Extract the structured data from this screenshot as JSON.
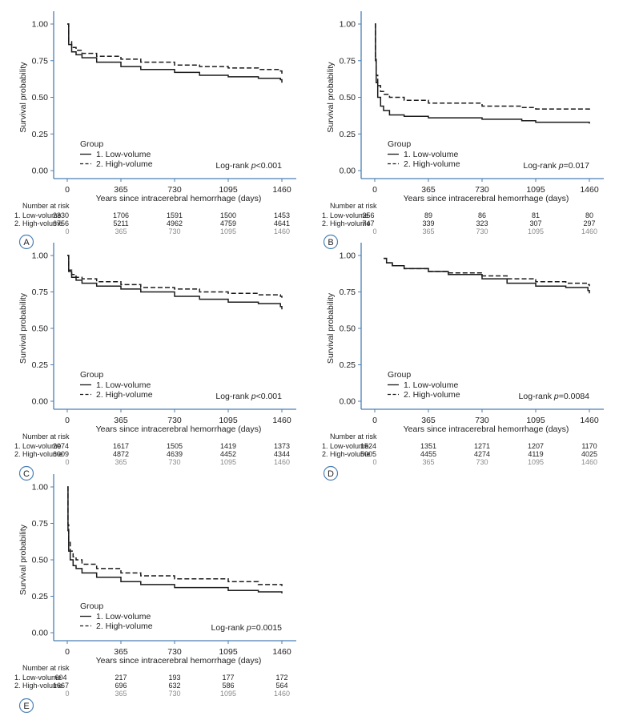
{
  "colors": {
    "axis": "#4a7fb5",
    "line": "#1a1a1a",
    "text": "#222222",
    "muted": "#8a8a8a",
    "badge": "#4a7fb5"
  },
  "chart_data": [
    {
      "panel": "A",
      "type": "line",
      "xlabel": "Years since intracerebral hemorrhage (days)",
      "ylabel": "Survival probability",
      "xlim": [
        0,
        1460
      ],
      "ylim": [
        0,
        1
      ],
      "xticks": [
        "0",
        "365",
        "730",
        "1095",
        "1460"
      ],
      "yticks": [
        "0.00",
        "0.25",
        "0.50",
        "0.75",
        "1.00"
      ],
      "legend_title": "Group",
      "series": [
        {
          "name": "1. Low-volume",
          "style": "solid",
          "x": [
            0,
            10,
            30,
            60,
            100,
            200,
            365,
            500,
            730,
            900,
            1095,
            1300,
            1450,
            1460
          ],
          "y": [
            1.0,
            0.86,
            0.81,
            0.79,
            0.77,
            0.74,
            0.71,
            0.69,
            0.67,
            0.65,
            0.64,
            0.63,
            0.62,
            0.6
          ]
        },
        {
          "name": "2. High-volume",
          "style": "dashed",
          "x": [
            0,
            10,
            30,
            60,
            100,
            200,
            365,
            500,
            730,
            900,
            1095,
            1300,
            1450,
            1460
          ],
          "y": [
            1.0,
            0.88,
            0.84,
            0.82,
            0.8,
            0.78,
            0.76,
            0.74,
            0.72,
            0.71,
            0.7,
            0.69,
            0.68,
            0.66
          ]
        }
      ],
      "pvalue_prefix": "Log-rank ",
      "pvalue_p": "p",
      "pvalue_suffix": "<0.001",
      "risk_title": "Number at risk",
      "risk_rows": [
        {
          "label": "1. Low-volume",
          "values": [
            "2330",
            "1706",
            "1591",
            "1500",
            "1453"
          ]
        },
        {
          "label": "2. High-volume",
          "values": [
            "6756",
            "5211",
            "4962",
            "4759",
            "4641"
          ]
        }
      ],
      "risk_x_labels": [
        "0",
        "365",
        "730",
        "1095",
        "1460"
      ]
    },
    {
      "panel": "B",
      "type": "line",
      "xlabel": "Years since intracerebral hemorrhage (days)",
      "ylabel": "Survival probability",
      "xlim": [
        0,
        1460
      ],
      "ylim": [
        0,
        1
      ],
      "xticks": [
        "0",
        "365",
        "730",
        "1095",
        "1460"
      ],
      "yticks": [
        "0.00",
        "0.25",
        "0.50",
        "0.75",
        "1.00"
      ],
      "legend_title": "Group",
      "series": [
        {
          "name": "1. Low-volume",
          "style": "solid",
          "x": [
            0,
            5,
            10,
            20,
            40,
            60,
            100,
            200,
            365,
            730,
            1000,
            1095,
            1460
          ],
          "y": [
            1.0,
            0.75,
            0.6,
            0.5,
            0.44,
            0.41,
            0.38,
            0.37,
            0.36,
            0.35,
            0.34,
            0.33,
            0.32
          ]
        },
        {
          "name": "2. High-volume",
          "style": "dashed",
          "x": [
            0,
            5,
            10,
            20,
            40,
            60,
            100,
            200,
            365,
            730,
            1000,
            1095,
            1460
          ],
          "y": [
            1.0,
            0.78,
            0.65,
            0.58,
            0.54,
            0.52,
            0.5,
            0.48,
            0.46,
            0.44,
            0.43,
            0.42,
            0.4
          ]
        }
      ],
      "pvalue_prefix": "Log-rank ",
      "pvalue_p": "p",
      "pvalue_suffix": "=0.017",
      "risk_title": "Number at risk",
      "risk_rows": [
        {
          "label": "1. Low-volume",
          "values": [
            "256",
            "89",
            "86",
            "81",
            "80"
          ]
        },
        {
          "label": "2. High-volume",
          "values": [
            "747",
            "339",
            "323",
            "307",
            "297"
          ]
        }
      ],
      "risk_x_labels": [
        "0",
        "365",
        "730",
        "1095",
        "1460"
      ]
    },
    {
      "panel": "C",
      "type": "line",
      "xlabel": "Years since intracerebral hemorrhage (days)",
      "ylabel": "Survival probability",
      "xlim": [
        0,
        1460
      ],
      "ylim": [
        0,
        1
      ],
      "xticks": [
        "0",
        "365",
        "730",
        "1095",
        "1460"
      ],
      "yticks": [
        "0.00",
        "0.25",
        "0.50",
        "0.75",
        "1.00"
      ],
      "legend_title": "Group",
      "series": [
        {
          "name": "1. Low-volume",
          "style": "solid",
          "x": [
            0,
            10,
            30,
            60,
            100,
            200,
            365,
            500,
            730,
            900,
            1095,
            1300,
            1450,
            1460
          ],
          "y": [
            1.0,
            0.89,
            0.85,
            0.83,
            0.81,
            0.79,
            0.77,
            0.75,
            0.72,
            0.7,
            0.68,
            0.67,
            0.65,
            0.63
          ]
        },
        {
          "name": "2. High-volume",
          "style": "dashed",
          "x": [
            0,
            10,
            30,
            60,
            100,
            200,
            365,
            500,
            730,
            900,
            1095,
            1300,
            1450,
            1460
          ],
          "y": [
            1.0,
            0.9,
            0.87,
            0.85,
            0.84,
            0.82,
            0.8,
            0.78,
            0.77,
            0.75,
            0.74,
            0.73,
            0.72,
            0.71
          ]
        }
      ],
      "pvalue_prefix": "Log-rank ",
      "pvalue_p": "p",
      "pvalue_suffix": "<0.001",
      "risk_title": "Number at risk",
      "risk_rows": [
        {
          "label": "1. Low-volume",
          "values": [
            "2074",
            "1617",
            "1505",
            "1419",
            "1373"
          ]
        },
        {
          "label": "2. High-volume",
          "values": [
            "6009",
            "4872",
            "4639",
            "4452",
            "4344"
          ]
        }
      ],
      "risk_x_labels": [
        "0",
        "365",
        "730",
        "1095",
        "1460"
      ]
    },
    {
      "panel": "D",
      "type": "line",
      "xlabel": "Years since intracerebral hemorrhage (days)",
      "ylabel": "Survival probability",
      "xlim": [
        0,
        1460
      ],
      "ylim": [
        0,
        1
      ],
      "xticks": [
        "0",
        "365",
        "730",
        "1095",
        "1460"
      ],
      "yticks": [
        "0.00",
        "0.25",
        "0.50",
        "0.75",
        "1.00"
      ],
      "legend_title": "Group",
      "series": [
        {
          "name": "1. Low-volume",
          "style": "solid",
          "x": [
            60,
            80,
            120,
            200,
            365,
            500,
            730,
            900,
            1095,
            1300,
            1450,
            1460
          ],
          "y": [
            0.98,
            0.95,
            0.93,
            0.91,
            0.89,
            0.87,
            0.84,
            0.81,
            0.79,
            0.78,
            0.76,
            0.74
          ]
        },
        {
          "name": "2. High-volume",
          "style": "dashed",
          "x": [
            60,
            80,
            120,
            200,
            365,
            500,
            730,
            900,
            1095,
            1300,
            1450,
            1460
          ],
          "y": [
            0.98,
            0.95,
            0.93,
            0.91,
            0.89,
            0.88,
            0.86,
            0.84,
            0.82,
            0.81,
            0.8,
            0.79
          ]
        }
      ],
      "pvalue_prefix": "Log-rank ",
      "pvalue_p": "p",
      "pvalue_suffix": "=0.0084",
      "risk_title": "Number at risk",
      "risk_rows": [
        {
          "label": "1. Low-volume",
          "values": [
            "1524",
            "1351",
            "1271",
            "1207",
            "1170"
          ]
        },
        {
          "label": "2. High-volume",
          "values": [
            "5005",
            "4455",
            "4274",
            "4119",
            "4025"
          ]
        }
      ],
      "risk_x_labels": [
        "0",
        "365",
        "730",
        "1095",
        "1460"
      ]
    },
    {
      "panel": "E",
      "type": "line",
      "xlabel": "Years since intracerebral hemorrhage (days)",
      "ylabel": "Survival probability",
      "xlim": [
        0,
        1460
      ],
      "ylim": [
        0,
        1
      ],
      "xticks": [
        "0",
        "365",
        "730",
        "1095",
        "1460"
      ],
      "yticks": [
        "0.00",
        "0.25",
        "0.50",
        "0.75",
        "1.00"
      ],
      "legend_title": "Group",
      "series": [
        {
          "name": "1. Low-volume",
          "style": "solid",
          "x": [
            0,
            5,
            10,
            20,
            40,
            60,
            100,
            200,
            365,
            500,
            730,
            1095,
            1300,
            1460
          ],
          "y": [
            1.0,
            0.7,
            0.56,
            0.5,
            0.46,
            0.44,
            0.41,
            0.38,
            0.35,
            0.33,
            0.31,
            0.29,
            0.28,
            0.27
          ]
        },
        {
          "name": "2. High-volume",
          "style": "dashed",
          "x": [
            0,
            5,
            10,
            20,
            40,
            60,
            100,
            200,
            365,
            500,
            730,
            1095,
            1300,
            1460
          ],
          "y": [
            1.0,
            0.74,
            0.62,
            0.56,
            0.52,
            0.5,
            0.47,
            0.44,
            0.41,
            0.39,
            0.37,
            0.35,
            0.33,
            0.32
          ]
        }
      ],
      "pvalue_prefix": "Log-rank ",
      "pvalue_p": "p",
      "pvalue_suffix": "=0.0015",
      "risk_title": "Number at risk",
      "risk_rows": [
        {
          "label": "1. Low-volume",
          "values": [
            "604",
            "217",
            "193",
            "177",
            "172"
          ]
        },
        {
          "label": "2. High-volume",
          "values": [
            "1667",
            "696",
            "632",
            "586",
            "564"
          ]
        }
      ],
      "risk_x_labels": [
        "0",
        "365",
        "730",
        "1095",
        "1460"
      ]
    }
  ]
}
